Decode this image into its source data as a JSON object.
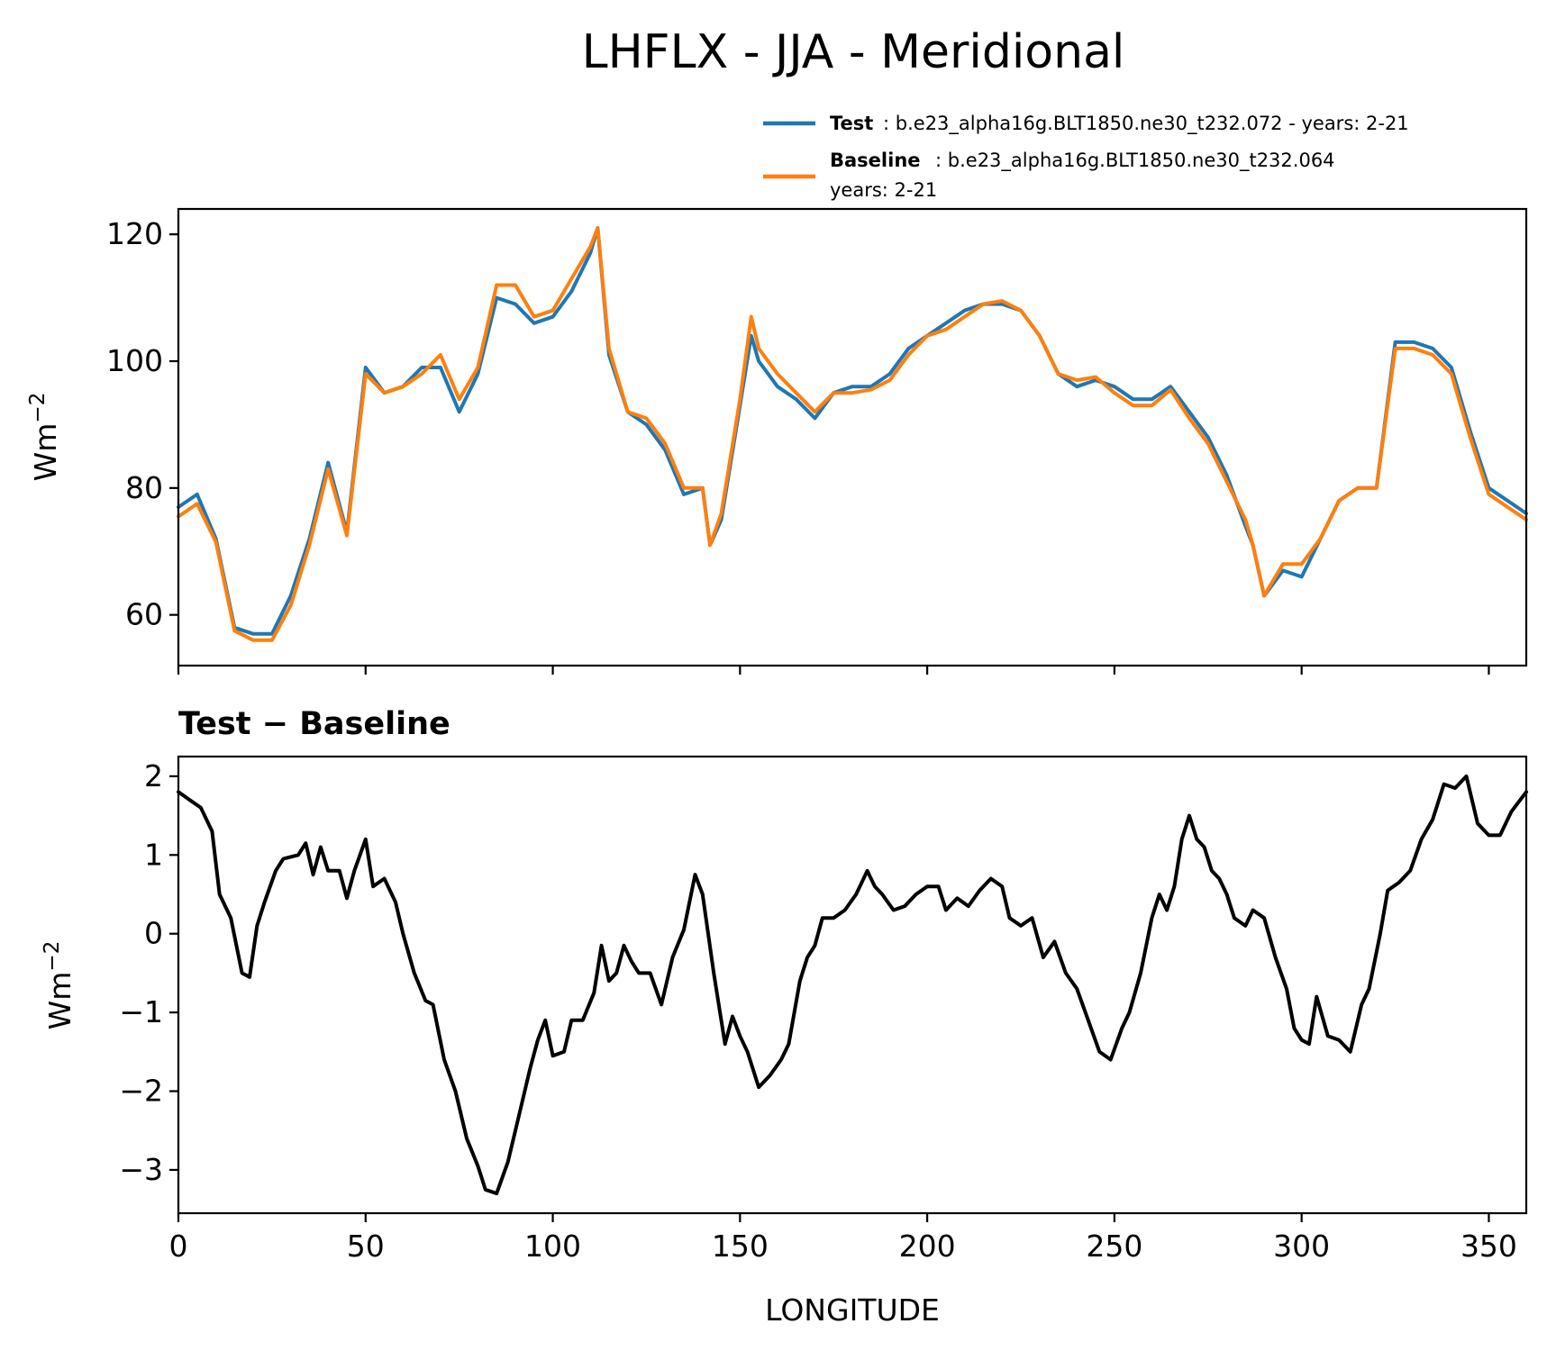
{
  "chart_data": [
    {
      "type": "line",
      "title": "LHFLX - JJA - Meridional",
      "ylabel": "Wm",
      "ylabel_sup": "−2",
      "xlim": [
        0,
        360
      ],
      "ylim": [
        52,
        124
      ],
      "xticks": [
        0,
        50,
        100,
        150,
        200,
        250,
        300,
        350
      ],
      "yticks": [
        60,
        80,
        100,
        120
      ],
      "legend": {
        "position": "top-right",
        "entries": [
          {
            "name": "Test",
            "label": "b.e23_alpha16g.BLT1850.ne30_t232.072 - years: 2-21",
            "color": "#1f77b4"
          },
          {
            "name": "Baseline",
            "label": "b.e23_alpha16g.BLT1850.ne30_t232.064",
            "label2": "years: 2-21",
            "color": "#ff7f0e"
          }
        ]
      },
      "x": [
        0,
        5,
        10,
        15,
        20,
        25,
        30,
        35,
        40,
        45,
        50,
        55,
        60,
        65,
        70,
        75,
        80,
        85,
        90,
        95,
        100,
        105,
        110,
        112,
        115,
        120,
        125,
        130,
        135,
        140,
        142,
        145,
        150,
        153,
        155,
        160,
        165,
        170,
        175,
        180,
        185,
        190,
        195,
        200,
        205,
        210,
        215,
        220,
        225,
        230,
        235,
        240,
        245,
        250,
        255,
        260,
        265,
        270,
        275,
        280,
        285,
        287,
        290,
        295,
        300,
        305,
        310,
        315,
        320,
        325,
        330,
        335,
        340,
        345,
        350,
        355,
        360
      ],
      "series": [
        {
          "name": "Test",
          "color": "#1f77b4",
          "values": [
            77,
            79,
            72,
            58,
            57,
            57,
            63,
            72,
            84,
            73,
            99,
            95,
            96,
            99,
            99,
            92,
            98,
            110,
            109,
            106,
            107,
            111,
            117,
            121,
            101,
            92,
            90,
            86,
            79,
            80,
            71,
            75,
            93,
            104,
            100,
            96,
            94,
            91,
            95,
            96,
            96,
            98,
            102,
            104,
            106,
            108,
            109,
            109,
            108,
            104,
            98,
            96,
            97,
            96,
            94,
            94,
            96,
            92,
            88,
            82,
            74,
            71,
            63,
            67,
            66,
            72,
            78,
            80,
            80,
            103,
            103,
            102,
            99,
            89,
            80,
            78,
            76
          ]
        },
        {
          "name": "Baseline",
          "color": "#ff7f0e",
          "values": [
            75.5,
            77.5,
            71.5,
            57.5,
            56,
            56,
            61.5,
            71,
            83,
            72.5,
            98,
            95,
            96,
            98,
            101,
            94,
            99,
            112,
            112,
            107,
            108,
            113,
            118,
            121,
            102,
            92,
            91,
            87,
            80,
            80,
            71,
            76,
            94,
            107,
            102,
            98,
            95,
            92,
            95,
            95,
            95.5,
            97,
            101,
            104,
            105,
            107,
            109,
            109.5,
            108,
            104,
            98,
            97,
            97.5,
            95,
            93,
            93,
            95.5,
            91,
            87,
            81,
            75,
            71,
            63,
            68,
            68,
            72,
            78,
            80,
            80,
            102,
            102,
            101,
            98,
            88,
            79,
            77,
            75
          ]
        }
      ]
    },
    {
      "type": "line",
      "title": "Test − Baseline",
      "xlabel": "LONGITUDE",
      "ylabel": "Wm",
      "ylabel_sup": "−2",
      "xlim": [
        0,
        360
      ],
      "ylim": [
        -3.55,
        2.25
      ],
      "xticks": [
        0,
        50,
        100,
        150,
        200,
        250,
        300,
        350
      ],
      "xticklabels": [
        "0",
        "50",
        "100",
        "150",
        "200",
        "250",
        "300",
        "350"
      ],
      "yticks": [
        -3,
        -2,
        -1,
        0,
        1,
        2
      ],
      "yticklabels": [
        "−3",
        "−2",
        "−1",
        "0",
        "1",
        "2"
      ],
      "series": [
        {
          "name": "difference",
          "color": "#000000",
          "values": [
            [
              0,
              1.8
            ],
            [
              3,
              1.7
            ],
            [
              6,
              1.6
            ],
            [
              9,
              1.3
            ],
            [
              11,
              0.5
            ],
            [
              14,
              0.2
            ],
            [
              17,
              -0.5
            ],
            [
              19,
              -0.55
            ],
            [
              21,
              0.1
            ],
            [
              23,
              0.4
            ],
            [
              26,
              0.8
            ],
            [
              28,
              0.95
            ],
            [
              32,
              1.0
            ],
            [
              34,
              1.15
            ],
            [
              36,
              0.75
            ],
            [
              38,
              1.1
            ],
            [
              40,
              0.8
            ],
            [
              43,
              0.8
            ],
            [
              45,
              0.45
            ],
            [
              47,
              0.8
            ],
            [
              50,
              1.2
            ],
            [
              52,
              0.6
            ],
            [
              55,
              0.7
            ],
            [
              58,
              0.4
            ],
            [
              60,
              0.0
            ],
            [
              63,
              -0.5
            ],
            [
              66,
              -0.85
            ],
            [
              68,
              -0.9
            ],
            [
              71,
              -1.6
            ],
            [
              74,
              -2.0
            ],
            [
              77,
              -2.6
            ],
            [
              80,
              -2.95
            ],
            [
              82,
              -3.25
            ],
            [
              85,
              -3.3
            ],
            [
              88,
              -2.9
            ],
            [
              91,
              -2.3
            ],
            [
              94,
              -1.7
            ],
            [
              96,
              -1.35
            ],
            [
              98,
              -1.1
            ],
            [
              100,
              -1.55
            ],
            [
              103,
              -1.5
            ],
            [
              105,
              -1.1
            ],
            [
              108,
              -1.1
            ],
            [
              111,
              -0.75
            ],
            [
              113,
              -0.15
            ],
            [
              115,
              -0.6
            ],
            [
              117,
              -0.5
            ],
            [
              119,
              -0.15
            ],
            [
              121,
              -0.35
            ],
            [
              123,
              -0.5
            ],
            [
              126,
              -0.5
            ],
            [
              129,
              -0.9
            ],
            [
              132,
              -0.3
            ],
            [
              135,
              0.05
            ],
            [
              138,
              0.75
            ],
            [
              140,
              0.5
            ],
            [
              143,
              -0.5
            ],
            [
              146,
              -1.4
            ],
            [
              148,
              -1.05
            ],
            [
              150,
              -1.3
            ],
            [
              152,
              -1.5
            ],
            [
              155,
              -1.95
            ],
            [
              158,
              -1.8
            ],
            [
              161,
              -1.6
            ],
            [
              163,
              -1.4
            ],
            [
              166,
              -0.6
            ],
            [
              168,
              -0.3
            ],
            [
              170,
              -0.15
            ],
            [
              172,
              0.2
            ],
            [
              175,
              0.2
            ],
            [
              178,
              0.3
            ],
            [
              181,
              0.5
            ],
            [
              184,
              0.8
            ],
            [
              186,
              0.6
            ],
            [
              188,
              0.5
            ],
            [
              191,
              0.3
            ],
            [
              194,
              0.35
            ],
            [
              197,
              0.5
            ],
            [
              200,
              0.6
            ],
            [
              203,
              0.6
            ],
            [
              205,
              0.3
            ],
            [
              208,
              0.45
            ],
            [
              211,
              0.35
            ],
            [
              214,
              0.55
            ],
            [
              217,
              0.7
            ],
            [
              220,
              0.6
            ],
            [
              222,
              0.2
            ],
            [
              225,
              0.1
            ],
            [
              228,
              0.2
            ],
            [
              231,
              -0.3
            ],
            [
              234,
              -0.1
            ],
            [
              237,
              -0.5
            ],
            [
              240,
              -0.7
            ],
            [
              243,
              -1.1
            ],
            [
              246,
              -1.5
            ],
            [
              249,
              -1.6
            ],
            [
              252,
              -1.2
            ],
            [
              254,
              -1.0
            ],
            [
              257,
              -0.5
            ],
            [
              260,
              0.2
            ],
            [
              262,
              0.5
            ],
            [
              264,
              0.3
            ],
            [
              266,
              0.6
            ],
            [
              268,
              1.2
            ],
            [
              270,
              1.5
            ],
            [
              272,
              1.2
            ],
            [
              274,
              1.1
            ],
            [
              276,
              0.8
            ],
            [
              278,
              0.7
            ],
            [
              280,
              0.5
            ],
            [
              282,
              0.2
            ],
            [
              285,
              0.1
            ],
            [
              287,
              0.3
            ],
            [
              290,
              0.2
            ],
            [
              293,
              -0.3
            ],
            [
              296,
              -0.7
            ],
            [
              298,
              -1.2
            ],
            [
              300,
              -1.35
            ],
            [
              302,
              -1.4
            ],
            [
              304,
              -0.8
            ],
            [
              307,
              -1.3
            ],
            [
              310,
              -1.35
            ],
            [
              313,
              -1.5
            ],
            [
              316,
              -0.9
            ],
            [
              318,
              -0.7
            ],
            [
              321,
              0.0
            ],
            [
              323,
              0.55
            ],
            [
              326,
              0.65
            ],
            [
              329,
              0.8
            ],
            [
              332,
              1.2
            ],
            [
              335,
              1.45
            ],
            [
              338,
              1.9
            ],
            [
              341,
              1.85
            ],
            [
              344,
              2.0
            ],
            [
              347,
              1.4
            ],
            [
              350,
              1.25
            ],
            [
              353,
              1.25
            ],
            [
              356,
              1.55
            ],
            [
              360,
              1.8
            ]
          ]
        }
      ]
    }
  ]
}
